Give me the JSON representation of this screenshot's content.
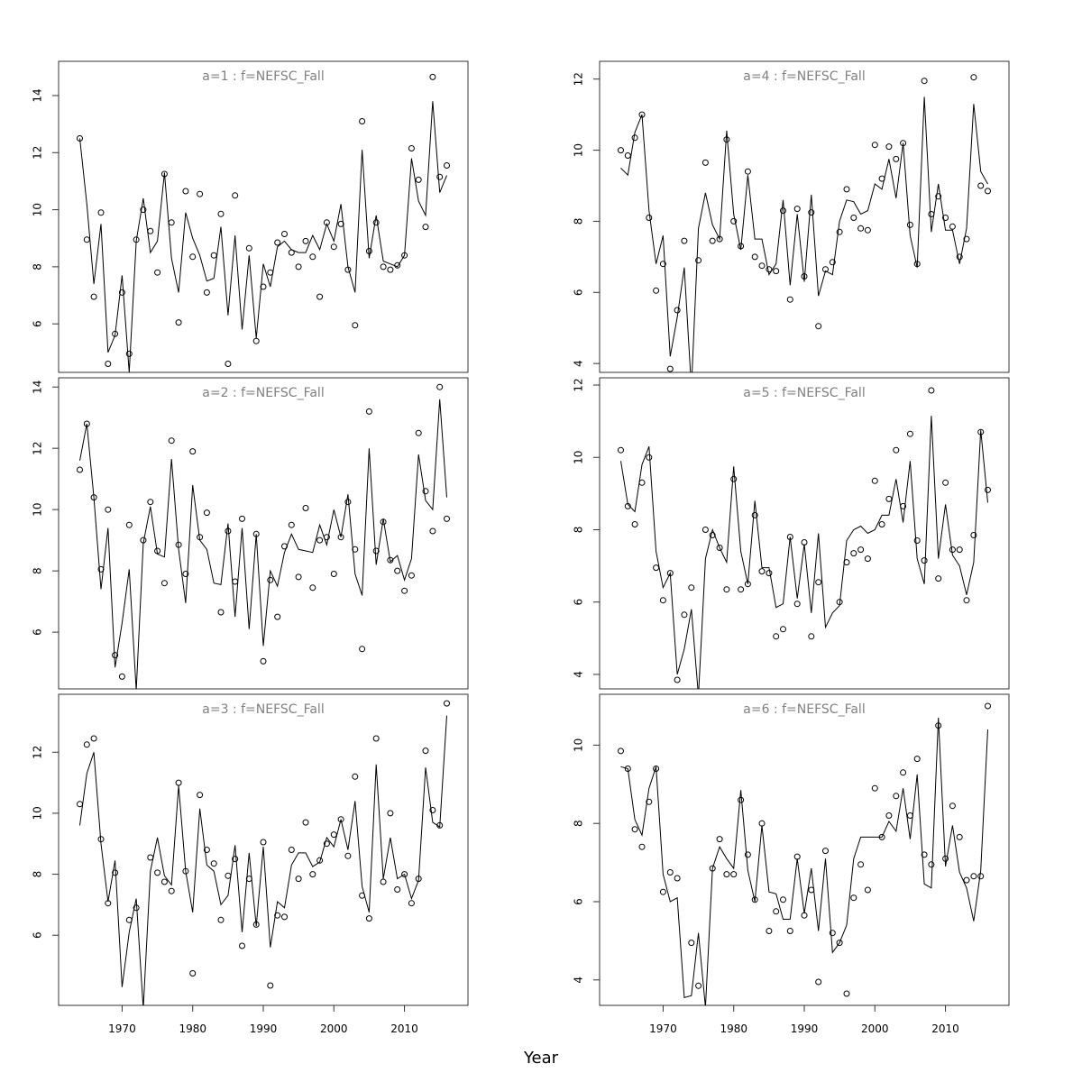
{
  "chart_data": [
    {
      "type": "line",
      "title": "a=1  :  f=NEFSC_Fall",
      "xlim": [
        1961,
        2019
      ],
      "ylim": [
        4.3,
        15.2
      ],
      "yticks": [
        6,
        8,
        10,
        12,
        14
      ],
      "x": [
        1964,
        1965,
        1966,
        1967,
        1968,
        1969,
        1970,
        1971,
        1972,
        1973,
        1974,
        1975,
        1976,
        1977,
        1978,
        1979,
        1980,
        1981,
        1982,
        1983,
        1984,
        1985,
        1986,
        1987,
        1988,
        1989,
        1990,
        1991,
        1992,
        1993,
        1994,
        1995,
        1996,
        1997,
        1998,
        1999,
        2000,
        2001,
        2002,
        2003,
        2004,
        2005,
        2006,
        2007,
        2008,
        2009,
        2010,
        2011,
        2012,
        2013,
        2014,
        2015,
        2016
      ],
      "series": [
        {
          "kind": "points",
          "values": [
            12.5,
            8.95,
            6.95,
            9.9,
            4.6,
            5.65,
            7.1,
            4.95,
            8.95,
            10.0,
            9.25,
            7.8,
            11.25,
            9.55,
            6.05,
            10.65,
            8.35,
            10.55,
            7.1,
            8.4,
            9.85,
            4.6,
            10.5,
            null,
            8.65,
            5.4,
            7.3,
            7.8,
            8.85,
            9.15,
            8.5,
            8.0,
            8.9,
            8.35,
            6.95,
            9.55,
            8.7,
            9.5,
            7.9,
            5.95,
            13.1,
            8.55,
            9.55,
            8.0,
            7.9,
            8.05,
            8.4,
            12.15,
            11.05,
            9.4,
            14.65,
            11.15,
            11.55
          ]
        },
        {
          "kind": "line",
          "values": [
            12.5,
            10.2,
            7.4,
            9.5,
            5.0,
            5.6,
            7.7,
            4.3,
            8.9,
            10.4,
            8.5,
            8.9,
            11.3,
            8.3,
            7.1,
            9.9,
            9.0,
            8.4,
            7.5,
            7.6,
            9.4,
            6.3,
            9.1,
            5.8,
            8.4,
            5.5,
            8.1,
            7.3,
            8.7,
            8.9,
            8.6,
            8.5,
            8.5,
            9.1,
            8.6,
            9.5,
            8.9,
            10.2,
            8.0,
            7.1,
            12.1,
            8.3,
            9.8,
            8.2,
            8.1,
            8.0,
            8.4,
            11.8,
            10.3,
            9.8,
            13.8,
            10.6,
            11.2
          ]
        }
      ]
    },
    {
      "type": "line",
      "title": "a=4  :  f=NEFSC_Fall",
      "xlim": [
        1961,
        2019
      ],
      "ylim": [
        3.75,
        12.5
      ],
      "yticks": [
        4,
        6,
        8,
        10,
        12
      ],
      "x": [
        1964,
        1965,
        1966,
        1967,
        1968,
        1969,
        1970,
        1971,
        1972,
        1973,
        1974,
        1975,
        1976,
        1977,
        1978,
        1979,
        1980,
        1981,
        1982,
        1983,
        1984,
        1985,
        1986,
        1987,
        1988,
        1989,
        1990,
        1991,
        1992,
        1993,
        1994,
        1995,
        1996,
        1997,
        1998,
        1999,
        2000,
        2001,
        2002,
        2003,
        2004,
        2005,
        2006,
        2007,
        2008,
        2009,
        2010,
        2011,
        2012,
        2013,
        2014,
        2015,
        2016
      ],
      "series": [
        {
          "kind": "points",
          "values": [
            10.0,
            9.85,
            10.35,
            11.0,
            8.1,
            6.05,
            6.8,
            3.85,
            5.5,
            7.45,
            null,
            6.9,
            9.65,
            7.45,
            7.5,
            10.3,
            8.0,
            7.3,
            9.4,
            7.0,
            6.75,
            6.65,
            6.6,
            8.3,
            5.8,
            8.35,
            6.45,
            8.25,
            5.05,
            6.65,
            6.85,
            7.7,
            8.9,
            8.1,
            7.8,
            7.75,
            10.15,
            9.2,
            10.1,
            9.75,
            10.2,
            7.9,
            6.8,
            11.95,
            8.2,
            8.7,
            8.1,
            7.85,
            7.0,
            7.5,
            12.05,
            9.0,
            8.85
          ]
        },
        {
          "kind": "line",
          "values": [
            9.5,
            9.3,
            10.5,
            11.0,
            8.3,
            6.8,
            7.6,
            4.2,
            5.3,
            6.7,
            3.3,
            7.8,
            8.8,
            7.9,
            7.5,
            10.55,
            8.2,
            7.2,
            9.3,
            7.5,
            7.5,
            6.5,
            6.8,
            8.6,
            6.2,
            8.2,
            6.3,
            8.75,
            5.9,
            6.6,
            6.5,
            8.0,
            8.6,
            8.55,
            8.2,
            8.3,
            9.05,
            8.9,
            9.75,
            8.65,
            10.2,
            7.6,
            6.7,
            11.5,
            7.7,
            9.05,
            7.75,
            7.75,
            6.8,
            7.8,
            11.3,
            9.4,
            9.05
          ]
        }
      ]
    },
    {
      "type": "line",
      "title": "a=2  :  f=NEFSC_Fall",
      "xlim": [
        1961,
        2019
      ],
      "ylim": [
        4.15,
        14.3
      ],
      "yticks": [
        6,
        8,
        10,
        12,
        14
      ],
      "x": [
        1964,
        1965,
        1966,
        1967,
        1968,
        1969,
        1970,
        1971,
        1972,
        1973,
        1974,
        1975,
        1976,
        1977,
        1978,
        1979,
        1980,
        1981,
        1982,
        1983,
        1984,
        1985,
        1986,
        1987,
        1988,
        1989,
        1990,
        1991,
        1992,
        1993,
        1994,
        1995,
        1996,
        1997,
        1998,
        1999,
        2000,
        2001,
        2002,
        2003,
        2004,
        2005,
        2006,
        2007,
        2008,
        2009,
        2010,
        2011,
        2012,
        2013,
        2014,
        2015,
        2016
      ],
      "series": [
        {
          "kind": "points",
          "values": [
            11.3,
            12.8,
            10.4,
            8.05,
            10.0,
            5.25,
            4.55,
            9.5,
            null,
            9.0,
            10.25,
            8.65,
            7.6,
            12.25,
            8.85,
            7.9,
            11.9,
            9.1,
            9.9,
            null,
            6.65,
            9.3,
            7.65,
            9.7,
            null,
            9.2,
            5.05,
            7.7,
            6.5,
            8.8,
            9.5,
            7.8,
            10.05,
            7.45,
            9.0,
            9.1,
            7.9,
            9.1,
            10.25,
            8.7,
            5.45,
            13.2,
            8.65,
            9.6,
            8.35,
            8.0,
            7.35,
            7.85,
            12.5,
            10.6,
            9.3,
            14.0,
            9.7
          ]
        },
        {
          "kind": "line",
          "values": [
            11.6,
            12.8,
            10.4,
            7.4,
            9.4,
            4.85,
            6.3,
            8.05,
            4.1,
            8.9,
            10.1,
            8.55,
            8.45,
            11.65,
            8.7,
            6.95,
            10.8,
            9.0,
            8.7,
            7.6,
            7.55,
            9.55,
            6.5,
            9.4,
            6.1,
            9.2,
            5.55,
            8.0,
            7.5,
            8.6,
            9.2,
            8.7,
            8.65,
            8.6,
            9.5,
            8.85,
            10.0,
            9.1,
            10.5,
            7.9,
            7.2,
            12.0,
            8.2,
            9.7,
            8.3,
            8.5,
            7.7,
            8.4,
            11.8,
            10.3,
            10.0,
            13.6,
            10.4
          ]
        }
      ]
    },
    {
      "type": "line",
      "title": "a=5  :  f=NEFSC_Fall",
      "xlim": [
        1961,
        2019
      ],
      "ylim": [
        3.6,
        12.2
      ],
      "yticks": [
        4,
        6,
        8,
        10,
        12
      ],
      "x": [
        1964,
        1965,
        1966,
        1967,
        1968,
        1969,
        1970,
        1971,
        1972,
        1973,
        1974,
        1975,
        1976,
        1977,
        1978,
        1979,
        1980,
        1981,
        1982,
        1983,
        1984,
        1985,
        1986,
        1987,
        1988,
        1989,
        1990,
        1991,
        1992,
        1993,
        1994,
        1995,
        1996,
        1997,
        1998,
        1999,
        2000,
        2001,
        2002,
        2003,
        2004,
        2005,
        2006,
        2007,
        2008,
        2009,
        2010,
        2011,
        2012,
        2013,
        2014,
        2015,
        2016
      ],
      "series": [
        {
          "kind": "points",
          "values": [
            10.2,
            8.65,
            8.15,
            9.3,
            10.0,
            6.95,
            6.05,
            6.8,
            3.85,
            5.65,
            6.4,
            null,
            8.0,
            7.85,
            7.5,
            6.35,
            9.4,
            6.35,
            6.5,
            8.4,
            6.85,
            6.8,
            5.05,
            5.25,
            7.8,
            5.95,
            7.65,
            5.05,
            6.55,
            null,
            null,
            6.0,
            7.1,
            7.35,
            7.45,
            7.2,
            9.35,
            8.15,
            8.85,
            10.2,
            8.65,
            10.65,
            7.7,
            7.15,
            11.85,
            6.65,
            9.3,
            7.45,
            7.45,
            6.05,
            7.85,
            10.7,
            9.1
          ]
        },
        {
          "kind": "line",
          "values": [
            9.9,
            8.7,
            8.5,
            9.8,
            10.3,
            7.4,
            6.4,
            6.8,
            4.0,
            4.7,
            5.8,
            3.4,
            7.2,
            8.0,
            7.5,
            7.1,
            9.75,
            7.4,
            6.5,
            8.8,
            6.95,
            6.95,
            5.85,
            5.95,
            7.8,
            6.1,
            7.6,
            5.7,
            7.9,
            5.3,
            5.7,
            5.9,
            7.7,
            8.0,
            8.1,
            7.9,
            8.0,
            8.4,
            8.4,
            9.4,
            8.2,
            9.9,
            7.2,
            6.5,
            11.15,
            7.2,
            8.7,
            7.3,
            7.0,
            6.2,
            7.1,
            10.75,
            8.75
          ]
        }
      ]
    },
    {
      "type": "line",
      "title": "a=3  :  f=NEFSC_Fall",
      "xlim": [
        1961,
        2019
      ],
      "ylim": [
        3.7,
        13.9
      ],
      "yticks": [
        6,
        8,
        10,
        12
      ],
      "x": [
        1964,
        1965,
        1966,
        1967,
        1968,
        1969,
        1970,
        1971,
        1972,
        1973,
        1974,
        1975,
        1976,
        1977,
        1978,
        1979,
        1980,
        1981,
        1982,
        1983,
        1984,
        1985,
        1986,
        1987,
        1988,
        1989,
        1990,
        1991,
        1992,
        1993,
        1994,
        1995,
        1996,
        1997,
        1998,
        1999,
        2000,
        2001,
        2002,
        2003,
        2004,
        2005,
        2006,
        2007,
        2008,
        2009,
        2010,
        2011,
        2012,
        2013,
        2014,
        2015,
        2016
      ],
      "series": [
        {
          "kind": "points",
          "values": [
            10.3,
            12.25,
            12.45,
            9.15,
            7.05,
            8.05,
            null,
            6.5,
            6.9,
            null,
            8.55,
            8.05,
            7.75,
            7.45,
            11.0,
            8.1,
            4.75,
            10.6,
            8.8,
            8.35,
            6.5,
            7.95,
            8.5,
            5.65,
            7.85,
            6.35,
            9.05,
            4.35,
            6.65,
            6.6,
            8.8,
            7.85,
            9.7,
            8.0,
            8.45,
            9.0,
            9.3,
            9.8,
            8.6,
            11.2,
            7.3,
            6.55,
            12.45,
            7.75,
            10.0,
            7.5,
            8.0,
            7.05,
            7.85,
            12.05,
            10.1,
            9.6,
            13.6
          ]
        },
        {
          "kind": "line",
          "values": [
            9.6,
            11.3,
            12.0,
            9.0,
            7.1,
            8.45,
            4.3,
            6.1,
            7.2,
            3.6,
            8.1,
            9.2,
            7.95,
            7.65,
            10.9,
            8.1,
            6.75,
            10.15,
            8.3,
            8.1,
            7.0,
            7.3,
            8.95,
            6.1,
            8.7,
            6.3,
            8.9,
            5.6,
            7.1,
            6.9,
            8.3,
            8.7,
            8.7,
            8.25,
            8.4,
            9.2,
            8.9,
            9.8,
            8.8,
            10.4,
            7.6,
            6.75,
            11.6,
            7.85,
            9.2,
            7.85,
            8.0,
            7.2,
            7.8,
            11.5,
            9.7,
            9.55,
            13.2
          ]
        }
      ]
    },
    {
      "type": "line",
      "title": "a=6  :  f=NEFSC_Fall",
      "xlim": [
        1961,
        2019
      ],
      "ylim": [
        3.35,
        11.3
      ],
      "yticks": [
        4,
        6,
        8,
        10
      ],
      "x": [
        1964,
        1965,
        1966,
        1967,
        1968,
        1969,
        1970,
        1971,
        1972,
        1973,
        1974,
        1975,
        1976,
        1977,
        1978,
        1979,
        1980,
        1981,
        1982,
        1983,
        1984,
        1985,
        1986,
        1987,
        1988,
        1989,
        1990,
        1991,
        1992,
        1993,
        1994,
        1995,
        1996,
        1997,
        1998,
        1999,
        2000,
        2001,
        2002,
        2003,
        2004,
        2005,
        2006,
        2007,
        2008,
        2009,
        2010,
        2011,
        2012,
        2013,
        2014,
        2015,
        2016
      ],
      "series": [
        {
          "kind": "points",
          "values": [
            9.85,
            9.4,
            7.85,
            7.4,
            8.55,
            9.4,
            6.25,
            6.75,
            6.6,
            null,
            4.95,
            3.85,
            null,
            6.85,
            7.6,
            6.7,
            6.7,
            8.6,
            7.2,
            6.05,
            8.0,
            5.25,
            5.75,
            6.05,
            5.25,
            7.15,
            5.65,
            6.3,
            3.95,
            7.3,
            5.2,
            4.95,
            3.65,
            6.1,
            6.95,
            6.3,
            8.9,
            7.65,
            8.2,
            8.7,
            9.3,
            8.2,
            9.65,
            7.2,
            6.95,
            10.5,
            7.1,
            8.45,
            7.65,
            6.55,
            6.65,
            6.65,
            11.0
          ]
        },
        {
          "kind": "line",
          "values": [
            9.45,
            9.4,
            8.1,
            7.7,
            8.9,
            9.45,
            6.7,
            6.0,
            6.1,
            3.55,
            3.6,
            5.2,
            3.3,
            6.85,
            7.4,
            7.1,
            6.85,
            8.85,
            6.8,
            6.0,
            7.95,
            6.25,
            6.2,
            5.55,
            5.55,
            7.1,
            5.7,
            6.85,
            5.25,
            7.1,
            4.7,
            4.95,
            5.4,
            7.1,
            7.65,
            7.65,
            7.65,
            7.65,
            8.05,
            7.8,
            8.9,
            7.6,
            9.25,
            6.45,
            6.35,
            10.7,
            6.9,
            7.95,
            6.75,
            6.35,
            5.5,
            6.8,
            10.4
          ]
        }
      ]
    }
  ],
  "xticks": [
    1970,
    1980,
    1990,
    2000,
    2010
  ],
  "xlabel": "Year"
}
